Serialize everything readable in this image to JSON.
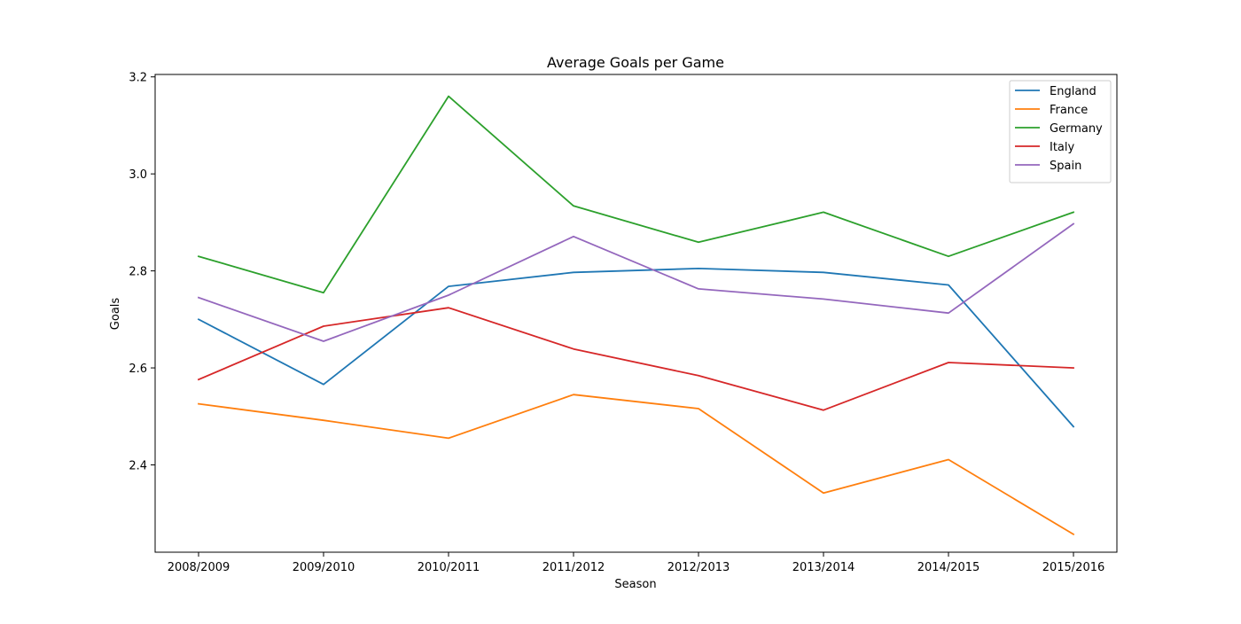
{
  "chart_data": {
    "type": "line",
    "title": "Average Goals per Game",
    "xlabel": "Season",
    "ylabel": "Goals",
    "categories": [
      "2008/2009",
      "2009/2010",
      "2010/2011",
      "2011/2012",
      "2012/2013",
      "2013/2014",
      "2014/2015",
      "2015/2016"
    ],
    "ylim": [
      2.22,
      3.205
    ],
    "yticks": [
      2.4,
      2.6,
      2.8,
      3.0,
      3.2
    ],
    "ytick_labels": [
      "2.4",
      "2.6",
      "2.8",
      "3.0",
      "3.2"
    ],
    "grid": false,
    "legend_position": "top-right",
    "series": [
      {
        "name": "England",
        "color": "#1f77b4",
        "values": [
          2.7,
          2.566,
          2.768,
          2.797,
          2.805,
          2.797,
          2.771,
          2.479
        ]
      },
      {
        "name": "France",
        "color": "#ff7f0e",
        "values": [
          2.526,
          2.492,
          2.455,
          2.545,
          2.516,
          2.342,
          2.411,
          2.257
        ]
      },
      {
        "name": "Germany",
        "color": "#2ca02c",
        "values": [
          2.83,
          2.755,
          3.16,
          2.934,
          2.859,
          2.921,
          2.83,
          2.921
        ]
      },
      {
        "name": "Italy",
        "color": "#d62728",
        "values": [
          2.576,
          2.686,
          2.724,
          2.639,
          2.584,
          2.513,
          2.611,
          2.6
        ]
      },
      {
        "name": "Spain",
        "color": "#9467bd",
        "values": [
          2.745,
          2.655,
          2.75,
          2.871,
          2.763,
          2.742,
          2.713,
          2.897
        ]
      }
    ]
  }
}
